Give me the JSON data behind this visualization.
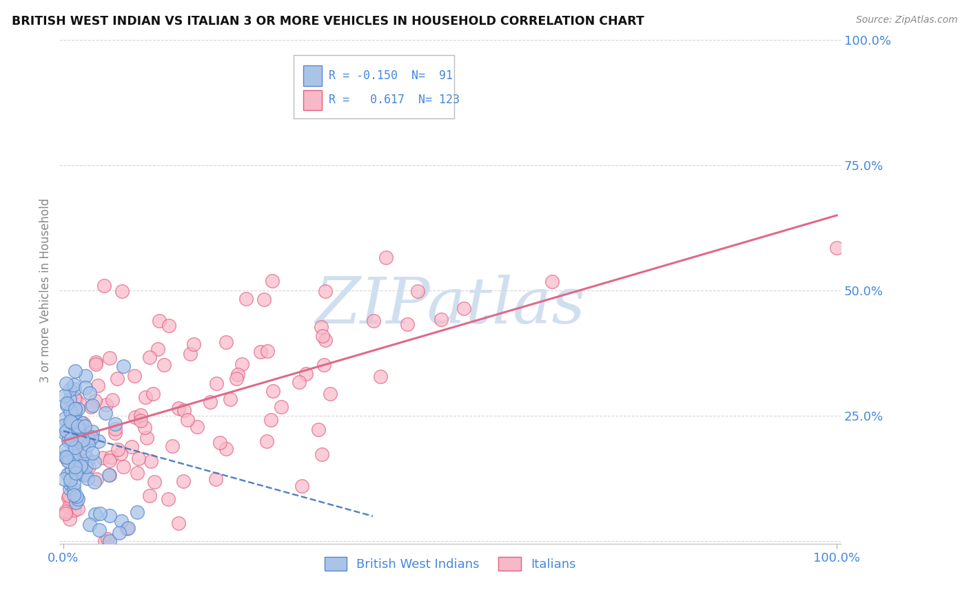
{
  "title": "BRITISH WEST INDIAN VS ITALIAN 3 OR MORE VEHICLES IN HOUSEHOLD CORRELATION CHART",
  "source": "Source: ZipAtlas.com",
  "ylabel": "3 or more Vehicles in Household",
  "legend_label1": "British West Indians",
  "legend_label2": "Italians",
  "R1": "-0.150",
  "N1": "91",
  "R2": "0.617",
  "N2": "123",
  "color_bwi_fill": "#aac4e8",
  "color_bwi_edge": "#5588cc",
  "color_italian_fill": "#f8b8c8",
  "color_italian_edge": "#e06080",
  "color_bwi_line": "#4477bb",
  "color_italian_line": "#e06888",
  "watermark_color": "#d0dff0",
  "watermark_text": "ZIPatlas",
  "title_color": "#111111",
  "source_color": "#888888",
  "ylabel_color": "#888888",
  "tick_color": "#4488dd",
  "grid_color": "#cccccc"
}
